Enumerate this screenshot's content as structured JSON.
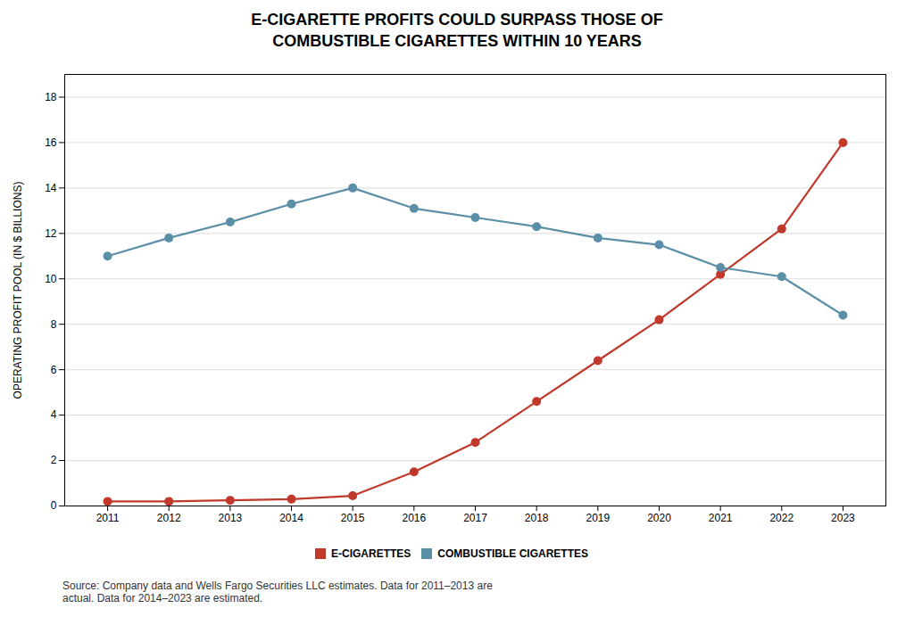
{
  "chart_data": {
    "type": "line",
    "title": "E-CIGARETTE PROFITS COULD SURPASS THOSE OF\nCOMBUSTIBLE CIGARETTES WITHIN 10 YEARS",
    "y_label": "OPERATING PROFIT POOL (IN $ BILLIONS)",
    "caption": "Source: Company data and Wells Fargo Securities LLC estimates. Data for 2011–2013 are\nactual. Data for 2014–2023 are estimated.",
    "x": [
      2011,
      2012,
      2013,
      2014,
      2015,
      2016,
      2017,
      2018,
      2019,
      2020,
      2021,
      2022,
      2023
    ],
    "series": [
      {
        "name": "E-CIGARETTES",
        "color": "#C0392B",
        "values": [
          0.2,
          0.2,
          0.25,
          0.3,
          0.45,
          1.5,
          2.8,
          4.6,
          6.4,
          8.2,
          10.2,
          12.2,
          16.0
        ]
      },
      {
        "name": "COMBUSTIBLE CIGARETTES",
        "color": "#5B8FA8",
        "values": [
          11.0,
          11.8,
          12.5,
          13.3,
          14.0,
          13.1,
          12.7,
          12.3,
          11.8,
          11.5,
          10.5,
          10.1,
          8.4
        ]
      }
    ],
    "xlim": [
      2010.3,
      2023.7
    ],
    "xticks": [
      2011,
      2012,
      2013,
      2014,
      2015,
      2016,
      2017,
      2018,
      2019,
      2020,
      2021,
      2022,
      2023
    ],
    "ylim": [
      0,
      19
    ],
    "yticks": [
      0,
      2,
      4,
      6,
      8,
      10,
      12,
      14,
      16,
      18
    ],
    "grid": true,
    "legend": "bottom",
    "marker": "circle"
  }
}
